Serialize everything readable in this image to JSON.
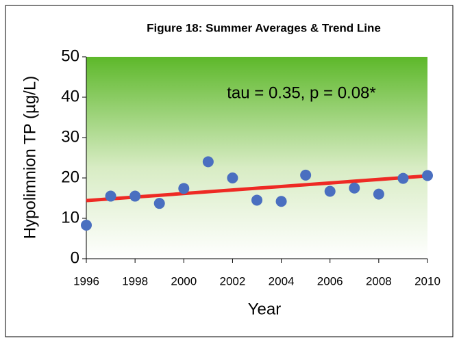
{
  "chart_data": {
    "type": "scatter",
    "title": "Figure 18: Summer Averages & Trend Line",
    "x_label": "Year",
    "y_label": "Hypolimnion TP (µg/L)",
    "annotation": "tau = 0.35, p = 0.08*",
    "x": [
      1996,
      1997,
      1998,
      1999,
      2000,
      2001,
      2002,
      2003,
      2004,
      2005,
      2006,
      2007,
      2008,
      2009,
      2010
    ],
    "series": [
      {
        "color": "#4a6fc0",
        "values": [
          8.3,
          15.5,
          15.5,
          13.7,
          17.4,
          24,
          20,
          14.5,
          14.2,
          20.7,
          16.7,
          17.5,
          16,
          19.9,
          20.6
        ]
      }
    ],
    "trend_line": {
      "color": "#ee2a24",
      "x": [
        1996,
        2010
      ],
      "values": [
        14.4,
        20.5
      ]
    },
    "xlim": [
      1996,
      2010
    ],
    "xticks": [
      1996,
      1998,
      2000,
      2002,
      2004,
      2006,
      2008,
      2010
    ],
    "ylim": [
      0,
      50
    ],
    "yticks": [
      0,
      10,
      20,
      30,
      40,
      50
    ]
  }
}
